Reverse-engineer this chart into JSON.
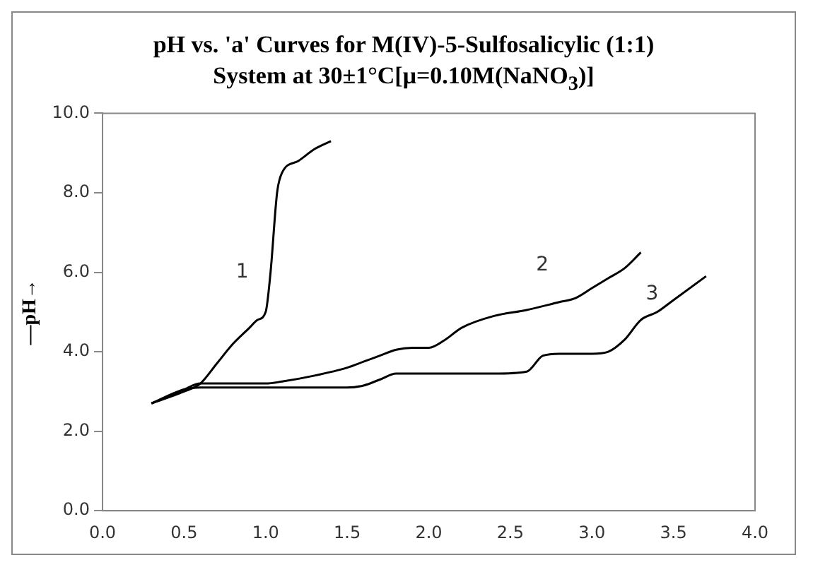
{
  "chart_data": {
    "type": "line",
    "title": "pH  vs. 'a' Curves for M(IV)-5-Sulfosalicylic (1:1)\nSystem at 30±1°C[μ=0.10M(NaNO$_{3}$)]",
    "ylabel": "—pH→",
    "xlim": [
      0,
      4
    ],
    "xticks": [
      {
        "value": 0,
        "label": "0.0"
      },
      {
        "value": 0.5,
        "label": "0.5"
      },
      {
        "value": 1,
        "label": "1.0"
      },
      {
        "value": 1.5,
        "label": "1.5"
      },
      {
        "value": 2,
        "label": "2.0"
      },
      {
        "value": 2.5,
        "label": "2.5"
      },
      {
        "value": 3,
        "label": "3.0"
      },
      {
        "value": 3.5,
        "label": "3.5"
      },
      {
        "value": 4,
        "label": "4.0"
      }
    ],
    "ylim": [
      0,
      10
    ],
    "yticks": [
      {
        "value": 0,
        "label": "0.0"
      },
      {
        "value": 2,
        "label": "2.0"
      },
      {
        "value": 4,
        "label": "4.0"
      },
      {
        "value": 6,
        "label": "6.0"
      },
      {
        "value": 8,
        "label": "8.0"
      },
      {
        "value": 10,
        "label": "10.0"
      }
    ],
    "grid": false,
    "legend": false,
    "marker": "none",
    "line_style": "solid",
    "series": [
      {
        "name": "1",
        "color": "#000000",
        "x": [
          0.3,
          0.5,
          0.6,
          0.7,
          0.8,
          0.9,
          0.95,
          1.0,
          1.03,
          1.07,
          1.1,
          1.2,
          1.3,
          1.4
        ],
        "values": [
          2.7,
          3.0,
          3.2,
          3.7,
          4.2,
          4.6,
          4.8,
          5.0,
          6.0,
          8.0,
          8.5,
          8.8,
          9.1,
          9.3
        ]
      },
      {
        "name": "2",
        "color": "#000000",
        "x": [
          0.3,
          0.5,
          0.6,
          1.0,
          1.1,
          1.3,
          1.5,
          1.6,
          1.7,
          1.8,
          1.9,
          2.0,
          2.1,
          2.2,
          2.4,
          2.6,
          2.8,
          2.9,
          3.0,
          3.1,
          3.2,
          3.3
        ],
        "values": [
          2.7,
          3.05,
          3.2,
          3.2,
          3.25,
          3.4,
          3.6,
          3.75,
          3.9,
          4.05,
          4.1,
          4.1,
          4.3,
          4.6,
          4.9,
          5.05,
          5.25,
          5.35,
          5.6,
          5.85,
          6.1,
          6.5
        ]
      },
      {
        "name": "3",
        "color": "#000000",
        "x": [
          0.3,
          0.5,
          0.6,
          1.0,
          1.5,
          1.6,
          1.7,
          1.8,
          2.0,
          2.4,
          2.6,
          2.7,
          2.8,
          3.0,
          3.1,
          3.2,
          3.3,
          3.4,
          3.5,
          3.7
        ],
        "values": [
          2.7,
          3.05,
          3.1,
          3.1,
          3.1,
          3.15,
          3.3,
          3.45,
          3.45,
          3.45,
          3.5,
          3.9,
          3.95,
          3.95,
          4.0,
          4.3,
          4.8,
          5.0,
          5.3,
          5.9
        ]
      }
    ]
  }
}
